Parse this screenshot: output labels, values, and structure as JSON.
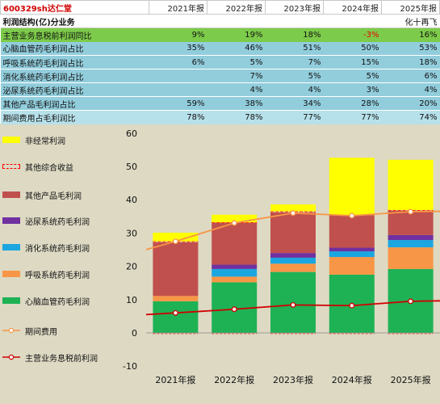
{
  "table": {
    "code": "600329sh达仁堂",
    "years": [
      "2021年报",
      "2022年报",
      "2023年报",
      "2024年报",
      "2025年报"
    ],
    "subtitle": "利润结构(亿)分业务",
    "credit": "化十再飞",
    "rows": [
      {
        "label": "主营业务息税前利润同比",
        "values": [
          "9%",
          "19%",
          "18%",
          "-3%",
          "16%"
        ],
        "style": "yoy",
        "colors": [
          "#111111",
          "#111111",
          "#111111",
          "#e60000",
          "#111111"
        ]
      },
      {
        "label": "心脑血管药毛利润占比",
        "values": [
          "35%",
          "46%",
          "51%",
          "50%",
          "53%"
        ],
        "style": "cyan"
      },
      {
        "label": "呼吸系统药毛利润占比",
        "values": [
          "6%",
          "5%",
          "7%",
          "15%",
          "18%"
        ],
        "style": "cyan"
      },
      {
        "label": "消化系统药毛利润占比",
        "values": [
          "",
          "7%",
          "5%",
          "5%",
          "6%"
        ],
        "style": "cyan"
      },
      {
        "label": "泌尿系统药毛利润占比",
        "values": [
          "",
          "4%",
          "4%",
          "3%",
          "4%"
        ],
        "style": "cyan"
      },
      {
        "label": "其他产品毛利润占比",
        "values": [
          "59%",
          "38%",
          "34%",
          "28%",
          "20%"
        ],
        "style": "cyan"
      },
      {
        "label": "期间费用占毛利润比",
        "values": [
          "78%",
          "78%",
          "77%",
          "77%",
          "74%"
        ],
        "style": "exp"
      }
    ]
  },
  "chart_data": {
    "type": "bar",
    "stacked": true,
    "categories": [
      "2021年报",
      "2022年报",
      "2023年报",
      "2024年报",
      "2025年报"
    ],
    "ylim": [
      -10,
      60
    ],
    "yticks": [
      "-10",
      "0",
      "10",
      "20",
      "30",
      "40",
      "50",
      "60"
    ],
    "series": [
      {
        "name": "心脑血管药毛利润",
        "kind": "bar",
        "color": "#1eb255",
        "values": [
          9.5,
          15.2,
          18.3,
          17.5,
          19.2
        ]
      },
      {
        "name": "呼吸系统药毛利润",
        "kind": "bar",
        "color": "#f79646",
        "values": [
          1.6,
          1.7,
          2.5,
          5.3,
          6.5
        ]
      },
      {
        "name": "消化系统药毛利润",
        "kind": "bar",
        "color": "#1ba6e0",
        "values": [
          0,
          2.3,
          1.8,
          1.7,
          2.2
        ]
      },
      {
        "name": "泌尿系统药毛利润",
        "kind": "bar",
        "color": "#7030a0",
        "values": [
          0,
          1.3,
          1.4,
          1.1,
          1.5
        ]
      },
      {
        "name": "其他产品毛利润",
        "kind": "bar",
        "color": "#c0504d",
        "values": [
          16.1,
          12.6,
          12.2,
          9.8,
          7.3
        ]
      },
      {
        "name": "其他综合收益",
        "kind": "bar",
        "color": "#ff0000",
        "dashed": true,
        "values": [
          0.3,
          0.1,
          0.3,
          0,
          0.2
        ]
      },
      {
        "name": "非经常利润",
        "kind": "bar",
        "color": "#ffff00",
        "values": [
          2.6,
          2.3,
          2.1,
          17.2,
          15.1
        ]
      },
      {
        "name": "期间费用",
        "kind": "line",
        "color": "#f79646",
        "values": [
          27.5,
          33.0,
          36.0,
          35.2,
          36.4
        ]
      },
      {
        "name": "主营业务息税前利润",
        "kind": "line",
        "color": "#d00000",
        "values": [
          6.0,
          7.1,
          8.4,
          8.2,
          9.5
        ]
      }
    ],
    "legend_order": [
      "非经常利润",
      "其他综合收益",
      "其他产品毛利润",
      "泌尿系统药毛利润",
      "消化系统药毛利润",
      "呼吸系统药毛利润",
      "心脑血管药毛利润",
      "期间费用",
      "主营业务息税前利润"
    ]
  }
}
